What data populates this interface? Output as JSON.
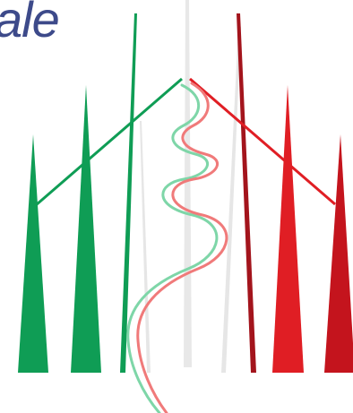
{
  "logo": {
    "wordmark_fragment": "ale",
    "colors": {
      "green": "#0f9d55",
      "white_gray": "#e2e2e2",
      "red": "#e01e24",
      "dark_red": "#b0121c",
      "wordmark_blue": "#3d4a8a"
    }
  }
}
